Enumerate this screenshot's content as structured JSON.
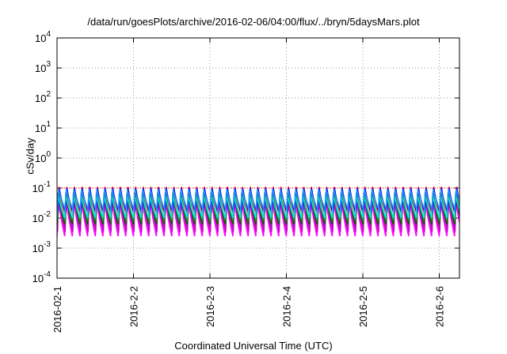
{
  "chart_data": {
    "type": "line",
    "title": "/data/run/goesPlots/archive/2016-02-06/04:00/flux/../bryn/5daysMars.plot",
    "xlabel": "Coordinated Universal Time (UTC)",
    "ylabel": "cSv/day",
    "yscale": "log",
    "ylim": [
      0.0001,
      10000
    ],
    "xlim": [
      "2016-02-01 00:00",
      "2016-02-06 04:00"
    ],
    "x_ticks": [
      "2016-02-1",
      "2016-2-2",
      "2016-2-3",
      "2016-2-4",
      "2016-2-5",
      "2016-2-6"
    ],
    "y_ticks": [
      {
        "base": "10",
        "exp": "-4"
      },
      {
        "base": "10",
        "exp": "-3"
      },
      {
        "base": "10",
        "exp": "-2"
      },
      {
        "base": "10",
        "exp": "-1"
      },
      {
        "base": "10",
        "exp": "0"
      },
      {
        "base": "10",
        "exp": "1"
      },
      {
        "base": "10",
        "exp": "2"
      },
      {
        "base": "10",
        "exp": "3"
      },
      {
        "base": "10",
        "exp": "4"
      }
    ],
    "grid": true,
    "threshold_line": {
      "y": 0.1,
      "color": "#ff0000",
      "style": "dotted"
    },
    "pattern": {
      "periods_per_day": 10,
      "description": "sawtooth: rises sharply to peak, then decays"
    },
    "series": [
      {
        "color": "#ff00ff",
        "peak": 0.05,
        "trough": 0.0025
      },
      {
        "color": "#cc00cc",
        "peak": 0.06,
        "trough": 0.0035
      },
      {
        "color": "#ff0000",
        "peak": 0.11,
        "trough": 0.012
      },
      {
        "color": "#006400",
        "peak": 0.07,
        "trough": 0.006
      },
      {
        "color": "#228b22",
        "peak": 0.075,
        "trough": 0.008
      },
      {
        "color": "#0000ff",
        "peak": 0.1,
        "trough": 0.015
      },
      {
        "color": "#00e5e5",
        "peak": 0.06,
        "trough": 0.01
      },
      {
        "color": "#1e90ff",
        "peak": 0.09,
        "trough": 0.02
      }
    ]
  }
}
